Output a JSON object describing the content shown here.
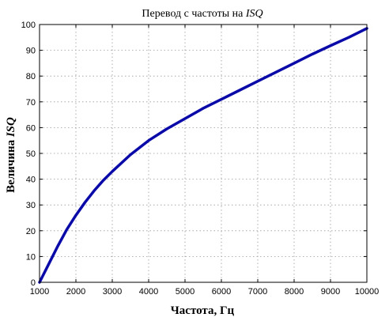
{
  "chart_data": {
    "type": "line",
    "title_text": "Перевод с частоты на ",
    "title_italic": "ISQ",
    "xlabel": "Частота, Гц",
    "ylabel_text": "Величина ",
    "ylabel_italic": "ISQ",
    "xlim": [
      1000,
      10000
    ],
    "ylim": [
      0,
      100
    ],
    "xticks": [
      1000,
      2000,
      3000,
      4000,
      5000,
      6000,
      7000,
      8000,
      9000,
      10000
    ],
    "yticks": [
      0,
      10,
      20,
      30,
      40,
      50,
      60,
      70,
      80,
      90,
      100
    ],
    "grid": true,
    "series": [
      {
        "color": "#0a0aa8",
        "x": [
          1000,
          1250,
          1500,
          1750,
          2000,
          2250,
          2500,
          2750,
          3000,
          3500,
          4000,
          4500,
          5000,
          5500,
          6000,
          6500,
          7000,
          7500,
          8000,
          8500,
          9000,
          9500,
          10000
        ],
        "y": [
          0,
          7,
          14,
          20.5,
          26,
          31,
          35.5,
          39.5,
          43,
          49.5,
          55,
          59.5,
          63.5,
          67.5,
          71,
          74.5,
          78,
          81.5,
          85,
          88.5,
          91.8,
          95,
          98.5
        ]
      }
    ]
  }
}
